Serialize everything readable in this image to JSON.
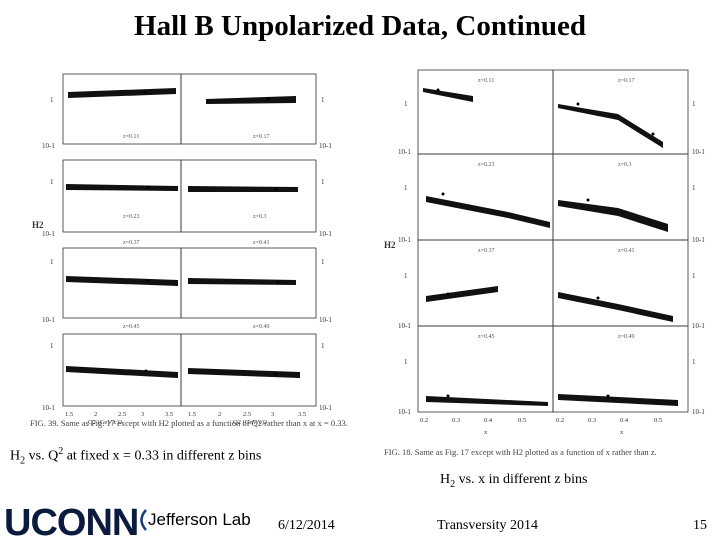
{
  "slide": {
    "title": "Hall B Unpolarized Data, Continued",
    "date": "6/12/2014",
    "conference": "Transversity 2014",
    "page_number": "15"
  },
  "left_figure": {
    "y_axis_label": "H2",
    "caption": "FIG. 39.  Same as Fig. 17 except with H2 plotted as a function of Q2 rather than x at x = 0.33.",
    "subtitle_main": "H",
    "subtitle_sub": "2",
    "subtitle_mid": " vs. Q",
    "subtitle_sup": "2",
    "subtitle_tail": " at fixed x = 0.33 in different z bins",
    "x_ticks": [
      "1.5",
      "2",
      "2.5",
      "3",
      "3.5"
    ],
    "x_label": "Q2 (GeV/c)2",
    "panel_labels": [
      "z=0.11",
      "z=0.17",
      "z=0.23",
      "z=0.3",
      "z=0.37",
      "z=0.41",
      "z=0.45",
      "z=0.49"
    ],
    "y_tick_top": "1",
    "y_tick_bottom": "10-1"
  },
  "right_figure": {
    "y_axis_label": "H2",
    "caption": "FIG. 18.  Same as Fig. 17 except with H2 plotted as a function of x rather than z.",
    "subtitle_main": "H",
    "subtitle_sub": "2",
    "subtitle_tail": " vs. x in different z bins",
    "x_ticks": [
      "0.2",
      "0.3",
      "0.4",
      "0.5",
      "0.2",
      "0.3",
      "0.4",
      "0.5"
    ],
    "x_label": "x",
    "panel_labels": [
      "z=0.11",
      "z=0.17",
      "z=0.23",
      "z=0.3",
      "z=0.37",
      "z=0.41",
      "z=0.45",
      "z=0.49"
    ],
    "y_tick_top": "1",
    "y_tick_bottom": "10-1"
  },
  "logos": {
    "uconn": "UCONN",
    "jlab": "Jefferson Lab"
  }
}
